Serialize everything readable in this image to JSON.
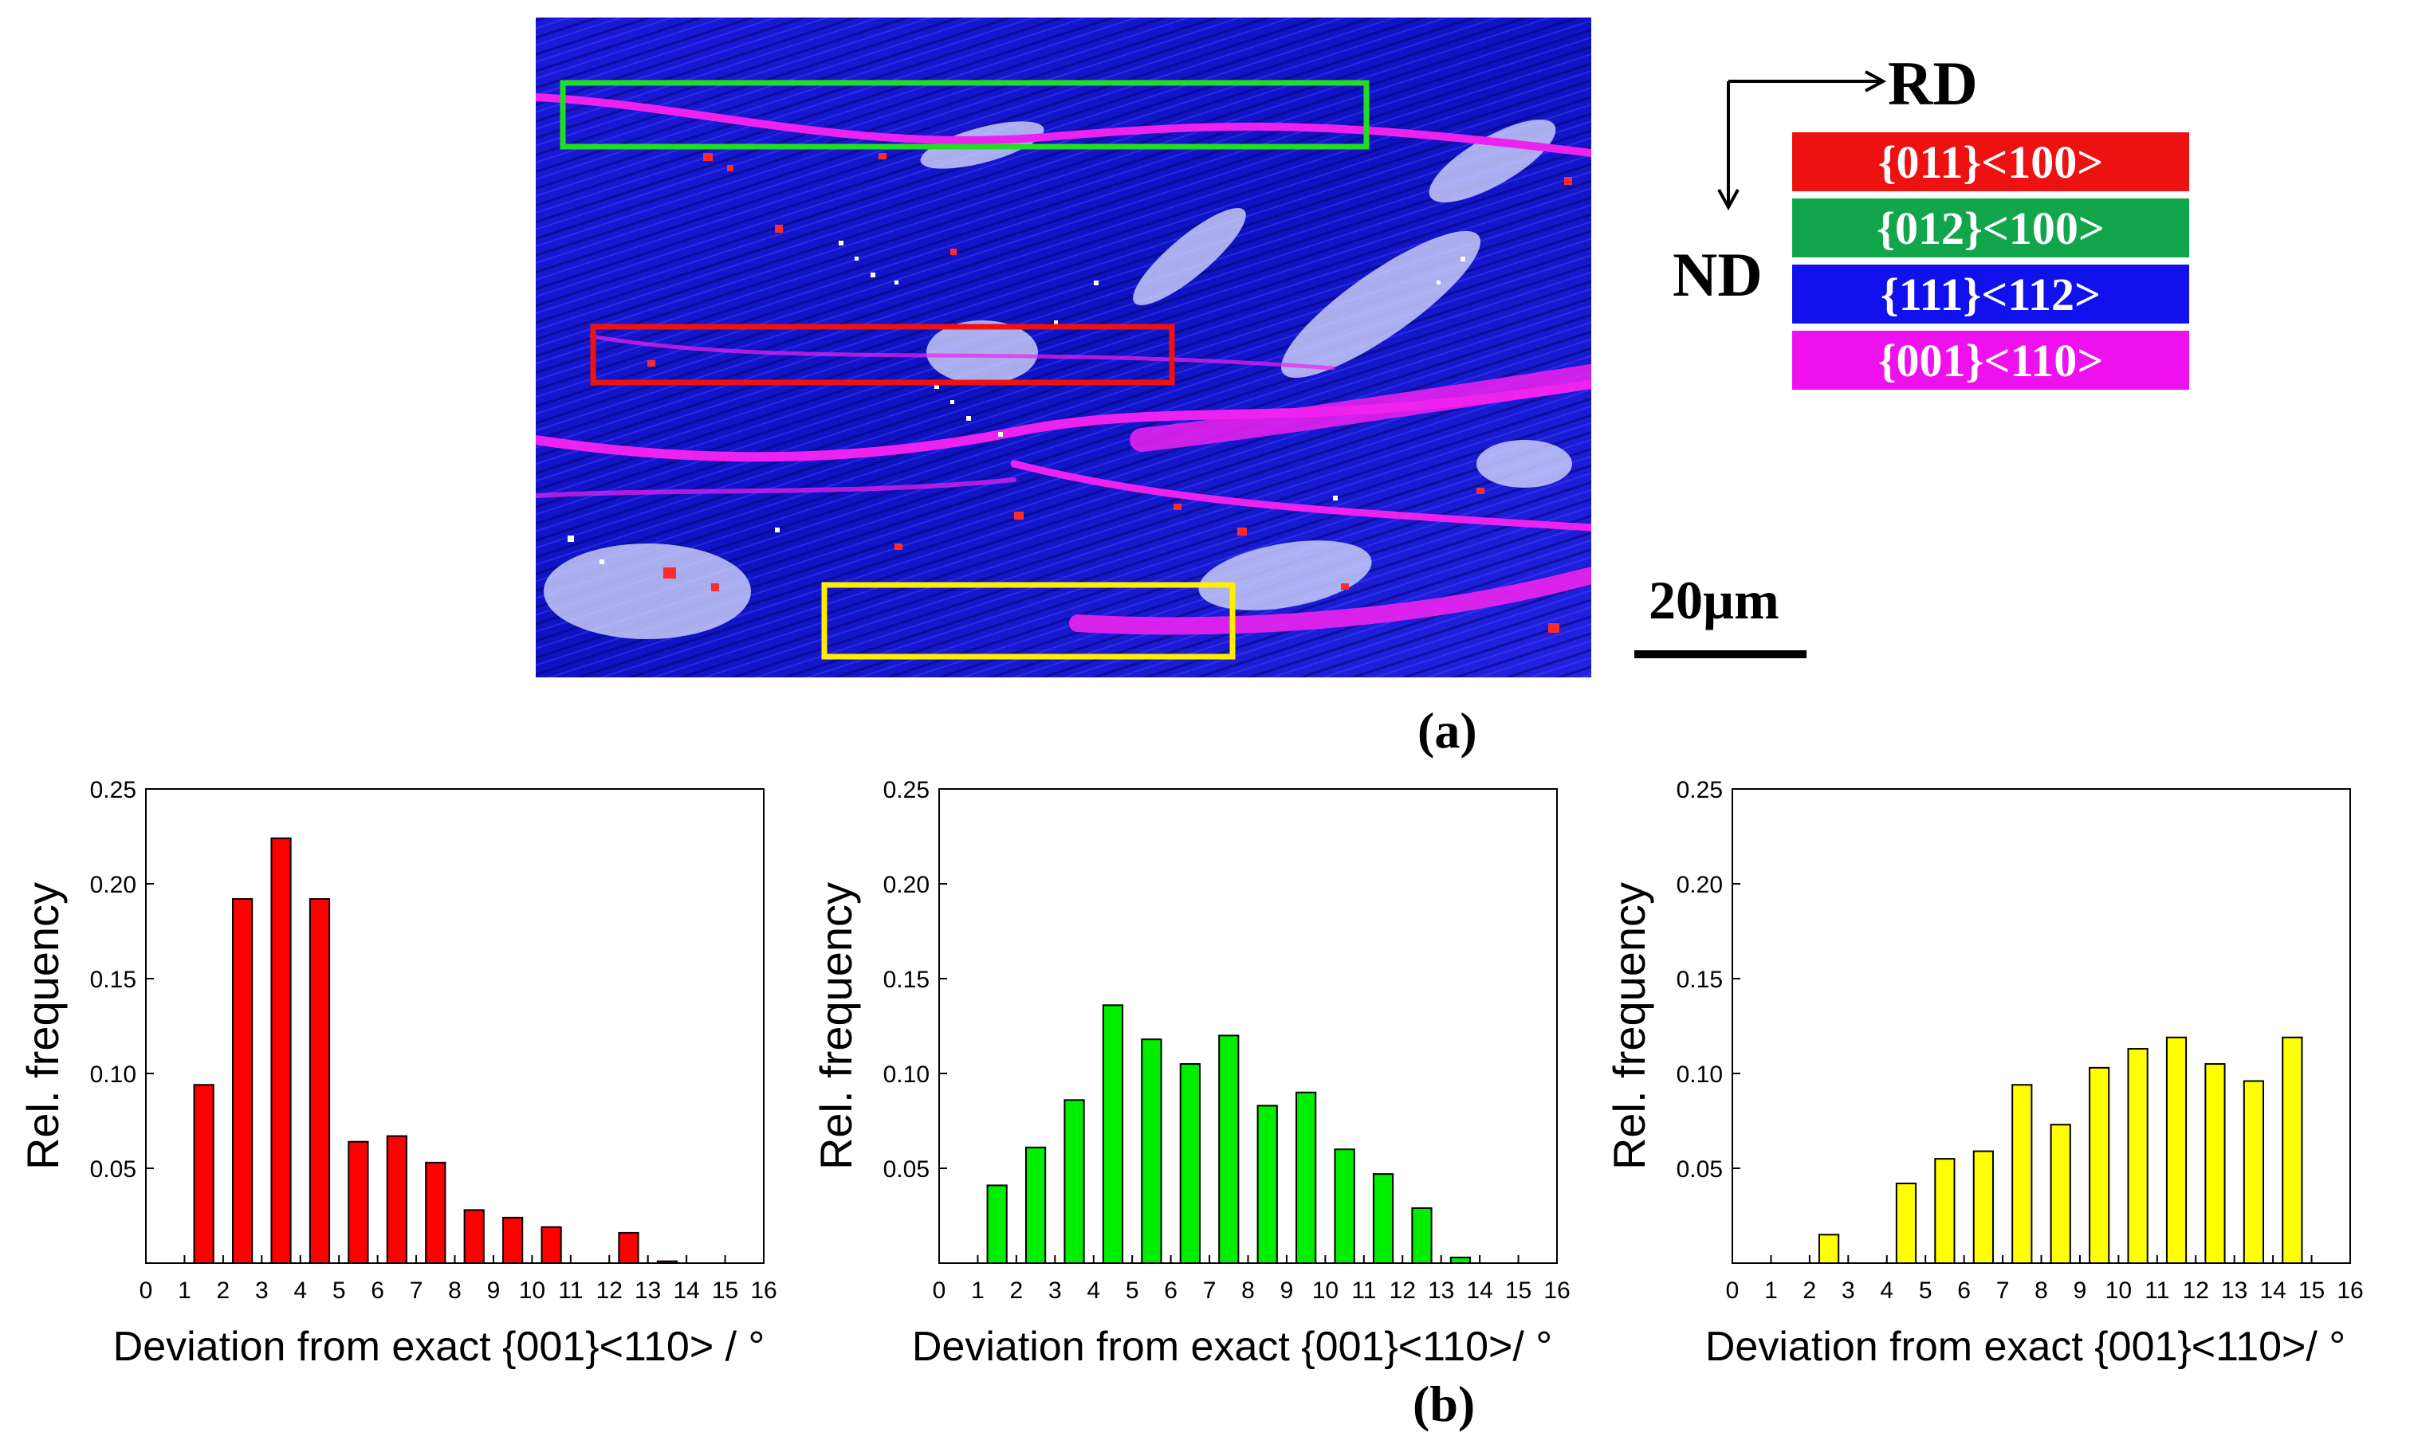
{
  "figure": {
    "panel_a_label": "(a)",
    "panel_b_label": "(b)",
    "rd_label": "RD",
    "nd_label": "ND",
    "scale_bar_label": "20µm"
  },
  "legend": [
    {
      "label": "{011}<100>",
      "color": "#ee1111"
    },
    {
      "label": "{012}<100>",
      "color": "#11a64c"
    },
    {
      "label": "{111}<112>",
      "color": "#1111ee"
    },
    {
      "label": "{001}<110>",
      "color": "#ee11ee"
    }
  ],
  "ebsd_boxes": [
    {
      "name": "green-box",
      "color": "#22dd22"
    },
    {
      "name": "red-box",
      "color": "#ee1111"
    },
    {
      "name": "yellow-box",
      "color": "#ffee00"
    }
  ],
  "chart_data": [
    {
      "type": "bar",
      "xlabel": "Deviation from exact {001}<110> / °",
      "ylabel": "Rel. frequency",
      "xlim": [
        0,
        16
      ],
      "ylim": [
        0,
        0.25
      ],
      "x_ticks": [
        "0",
        "1",
        "2",
        "3",
        "4",
        "5",
        "6",
        "7",
        "8",
        "9",
        "10",
        "11",
        "12",
        "13",
        "14",
        "15",
        "16"
      ],
      "y_ticks": [
        "0.05",
        "0.10",
        "0.15",
        "0.20",
        "0.25"
      ],
      "color": "#ff0000",
      "bin_centers": [
        1.5,
        2.5,
        3.5,
        4.5,
        5.5,
        6.5,
        7.5,
        8.5,
        9.5,
        10.5,
        11.5,
        12.5,
        13.5,
        14.5,
        15.5
      ],
      "values": [
        0.094,
        0.192,
        0.224,
        0.192,
        0.064,
        0.067,
        0.053,
        0.028,
        0.024,
        0.019,
        0,
        0.016,
        0.001,
        0,
        0
      ]
    },
    {
      "type": "bar",
      "xlabel": "Deviation from exact {001}<110>/ °",
      "ylabel": "Rel. frequency",
      "xlim": [
        0,
        16
      ],
      "ylim": [
        0,
        0.25
      ],
      "x_ticks": [
        "0",
        "1",
        "2",
        "3",
        "4",
        "5",
        "6",
        "7",
        "8",
        "9",
        "10",
        "11",
        "12",
        "13",
        "14",
        "15",
        "16"
      ],
      "y_ticks": [
        "0.05",
        "0.10",
        "0.15",
        "0.20",
        "0.25"
      ],
      "color": "#00ee00",
      "bin_centers": [
        1.5,
        2.5,
        3.5,
        4.5,
        5.5,
        6.5,
        7.5,
        8.5,
        9.5,
        10.5,
        11.5,
        12.5,
        13.5,
        14.5,
        15.5
      ],
      "values": [
        0.041,
        0.061,
        0.086,
        0.136,
        0.118,
        0.105,
        0.12,
        0.083,
        0.09,
        0.06,
        0.047,
        0.029,
        0.003,
        0,
        0
      ]
    },
    {
      "type": "bar",
      "xlabel": "Deviation from exact {001}<110>/ °",
      "ylabel": "Rel. frequency",
      "xlim": [
        0,
        16
      ],
      "ylim": [
        0,
        0.25
      ],
      "x_ticks": [
        "0",
        "1",
        "2",
        "3",
        "4",
        "5",
        "6",
        "7",
        "8",
        "9",
        "10",
        "11",
        "12",
        "13",
        "14",
        "15",
        "16"
      ],
      "y_ticks": [
        "0.05",
        "0.10",
        "0.15",
        "0.20",
        "0.25"
      ],
      "color": "#ffff00",
      "bin_centers": [
        1.5,
        2.5,
        3.5,
        4.5,
        5.5,
        6.5,
        7.5,
        8.5,
        9.5,
        10.5,
        11.5,
        12.5,
        13.5,
        14.5,
        15.5
      ],
      "values": [
        0,
        0.015,
        0,
        0.042,
        0.055,
        0.059,
        0.094,
        0.073,
        0.103,
        0.113,
        0.119,
        0.105,
        0.096,
        0.119,
        0
      ]
    }
  ]
}
